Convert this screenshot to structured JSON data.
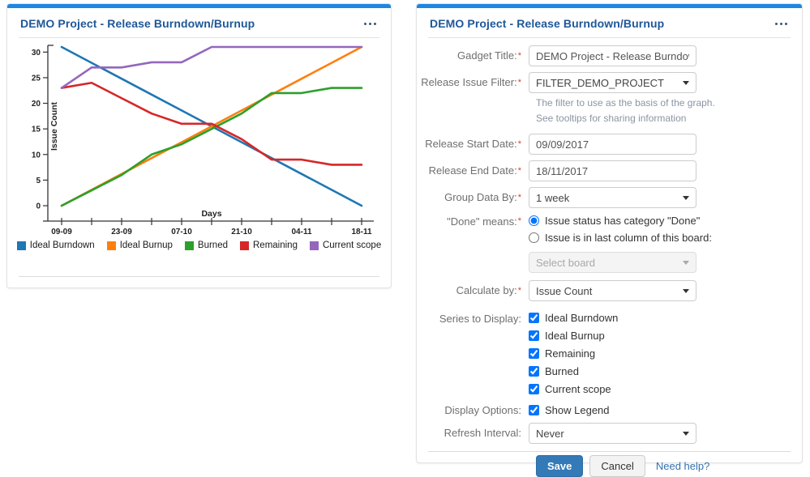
{
  "accent_color": "#1e87e4",
  "chart_panel": {
    "title": "DEMO Project - Release Burndown/Burnup"
  },
  "config_panel": {
    "title": "DEMO Project - Release Burndown/Burnup"
  },
  "chart_data": {
    "type": "line",
    "xlabel": "Days",
    "ylabel": "Issue Count",
    "ylim": [
      0,
      31
    ],
    "yticks": [
      0,
      5,
      10,
      15,
      20,
      25,
      30
    ],
    "x": [
      "09-09",
      "16-09",
      "23-09",
      "30-09",
      "07-10",
      "14-10",
      "21-10",
      "28-10",
      "04-11",
      "11-11",
      "18-11"
    ],
    "x_labeled_every": 2,
    "grid": false,
    "legend_position": "bottom",
    "series": [
      {
        "name": "Ideal Burndown",
        "color": "#1f77b4",
        "values": [
          31,
          27.9,
          24.8,
          21.7,
          18.6,
          15.5,
          12.4,
          9.3,
          6.2,
          3.1,
          0
        ]
      },
      {
        "name": "Ideal Burnup",
        "color": "#ff7f0e",
        "values": [
          0,
          3.1,
          6.2,
          9.3,
          12.4,
          15.5,
          18.6,
          21.7,
          24.8,
          27.9,
          31
        ]
      },
      {
        "name": "Burned",
        "color": "#2ca02c",
        "values": [
          0,
          3,
          6,
          10,
          12,
          15,
          18,
          22,
          22,
          23,
          23
        ]
      },
      {
        "name": "Remaining",
        "color": "#d62728",
        "values": [
          23,
          24,
          21,
          18,
          16,
          16,
          13,
          9,
          9,
          8,
          8
        ]
      },
      {
        "name": "Current scope",
        "color": "#9467bd",
        "values": [
          23,
          27,
          27,
          28,
          28,
          31,
          31,
          31,
          31,
          31,
          31
        ]
      }
    ]
  },
  "form": {
    "required_marker": "*",
    "gadget_title": {
      "label": "Gadget Title:",
      "value": "DEMO Project - Release Burndown/Burnup"
    },
    "release_issue_filter": {
      "label": "Release Issue Filter:",
      "value": "FILTER_DEMO_PROJECT",
      "help": "The filter to use as the basis of the graph. See tooltips for sharing information"
    },
    "release_start_date": {
      "label": "Release Start Date:",
      "value": "09/09/2017"
    },
    "release_end_date": {
      "label": "Release End Date:",
      "value": "18/11/2017"
    },
    "group_data_by": {
      "label": "Group Data By:",
      "value": "1 week"
    },
    "done_means": {
      "label": "\"Done\" means:",
      "option1": "Issue status has category \"Done\"",
      "option2": "Issue is in last column of this board:",
      "board_placeholder": "Select board"
    },
    "calculate_by": {
      "label": "Calculate by:",
      "value": "Issue Count"
    },
    "series_to_display": {
      "label": "Series to Display:",
      "options": [
        "Ideal Burndown",
        "Ideal Burnup",
        "Remaining",
        "Burned",
        "Current scope"
      ]
    },
    "display_options": {
      "label": "Display Options:",
      "option": "Show Legend"
    },
    "refresh_interval": {
      "label": "Refresh Interval:",
      "value": "Never"
    },
    "actions": {
      "save": "Save",
      "cancel": "Cancel",
      "help": "Need help?"
    }
  }
}
